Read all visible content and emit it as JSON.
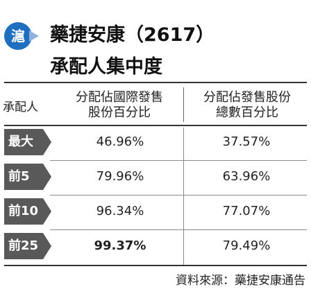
{
  "logo": {
    "text": "滬",
    "color": "#1f6fc0"
  },
  "title": {
    "line1": "藥捷安康（2617）",
    "line2": "承配人集中度"
  },
  "chart_data": {
    "type": "table",
    "row_header": "承配人",
    "columns": [
      "分配佔國際發售股份百分比",
      "分配佔發售股份總數百分比"
    ],
    "column_lines": [
      [
        "分配佔國際發售",
        "股份百分比"
      ],
      [
        "分配佔發售股份",
        "總數百分比"
      ]
    ],
    "rows": [
      {
        "label": "最大",
        "values": [
          "46.96%",
          "37.57%"
        ]
      },
      {
        "label": "前5",
        "values": [
          "79.96%",
          "63.96%"
        ]
      },
      {
        "label": "前10",
        "values": [
          "96.34%",
          "77.07%"
        ]
      },
      {
        "label": "前25",
        "values": [
          "99.37%",
          "79.49%"
        ]
      }
    ]
  },
  "source": "資料來源：藥捷安康通告",
  "colors": {
    "row_label_bg": "#595959",
    "accent": "#1f6fc0"
  }
}
